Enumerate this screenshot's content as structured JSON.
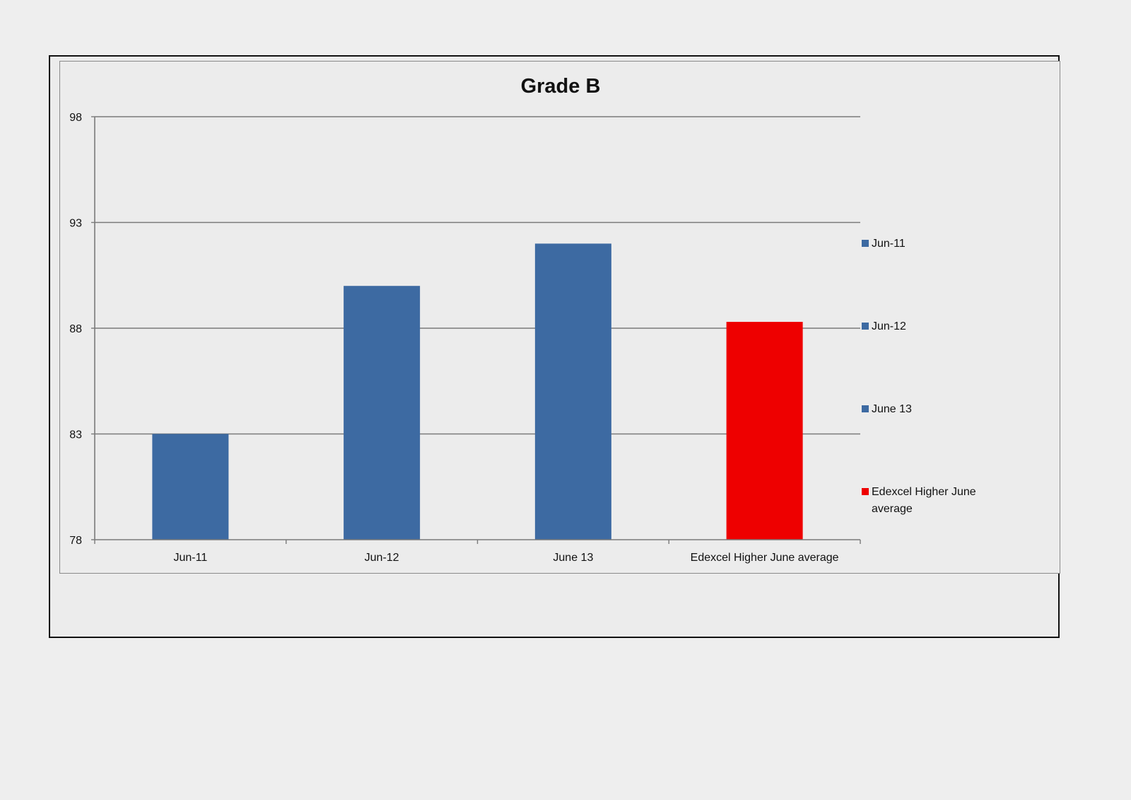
{
  "chart_data": {
    "type": "bar",
    "title": "Grade B",
    "categories": [
      "Jun-11",
      "Jun-12",
      "June 13",
      "Edexcel Higher June average"
    ],
    "values": [
      83,
      90,
      92,
      88.3
    ],
    "bar_colors": [
      "#3d6aa2",
      "#3d6aa2",
      "#3d6aa2",
      "#ee0000"
    ],
    "ylim": [
      78,
      98
    ],
    "yticks": [
      78,
      83,
      88,
      93,
      98
    ],
    "xlabel": "",
    "ylabel": "",
    "grid": true,
    "legend": {
      "position": "right",
      "entries": [
        {
          "label": "Jun-11",
          "color": "#3d6aa2"
        },
        {
          "label": "Jun-12",
          "color": "#3d6aa2"
        },
        {
          "label": "June 13",
          "color": "#3d6aa2"
        },
        {
          "label": "Edexcel Higher June average",
          "color": "#ee0000"
        }
      ]
    }
  }
}
